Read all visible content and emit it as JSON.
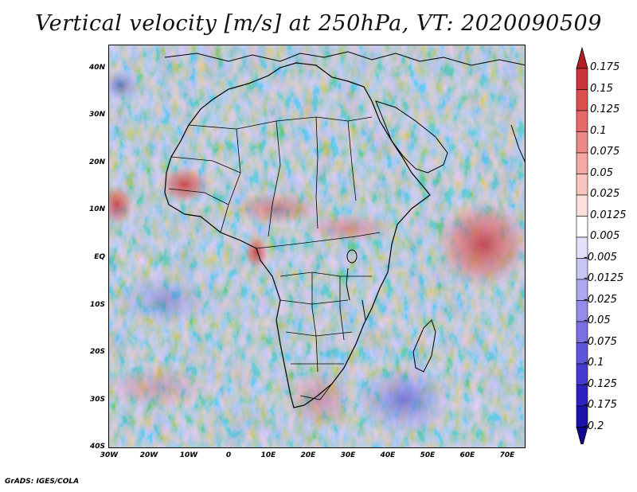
{
  "title": "Vertical velocity [m/s] at 250hPa, VT: 2020090509",
  "credit": "GrADS: IGES/COLA",
  "map": {
    "lat_range": [
      -40,
      45
    ],
    "lon_range": [
      -30,
      75
    ],
    "lat_ticks": [
      "40N",
      "30N",
      "20N",
      "10N",
      "EQ",
      "10S",
      "20S",
      "30S",
      "40S"
    ],
    "lat_values": [
      40,
      30,
      20,
      10,
      0,
      -10,
      -20,
      -30,
      -40
    ],
    "lon_ticks": [
      "30W",
      "20W",
      "10W",
      "0",
      "10E",
      "20E",
      "30E",
      "40E",
      "50E",
      "60E",
      "70E"
    ],
    "lon_values": [
      -30,
      -20,
      -10,
      0,
      10,
      20,
      30,
      40,
      50,
      60,
      70
    ]
  },
  "colorbar": {
    "labels": [
      "0.175",
      "0.15",
      "0.125",
      "0.1",
      "0.075",
      "0.05",
      "0.025",
      "0.0125",
      "0.005",
      "-0.005",
      "-0.0125",
      "-0.025",
      "-0.05",
      "-0.075",
      "-0.1",
      "-0.125",
      "-0.175",
      "-0.2"
    ],
    "colors": [
      "#b41e26",
      "#c9353a",
      "#dc4f4f",
      "#e56a6a",
      "#ee8a86",
      "#f4a9a3",
      "#f8c5bf",
      "#fbe0dc",
      "#ffffff",
      "#e2e0fb",
      "#c8c4f6",
      "#aea8f1",
      "#938cec",
      "#7a71e4",
      "#5f55db",
      "#453bcf",
      "#2d22bf",
      "#1a12a8",
      "#0d0890"
    ]
  }
}
